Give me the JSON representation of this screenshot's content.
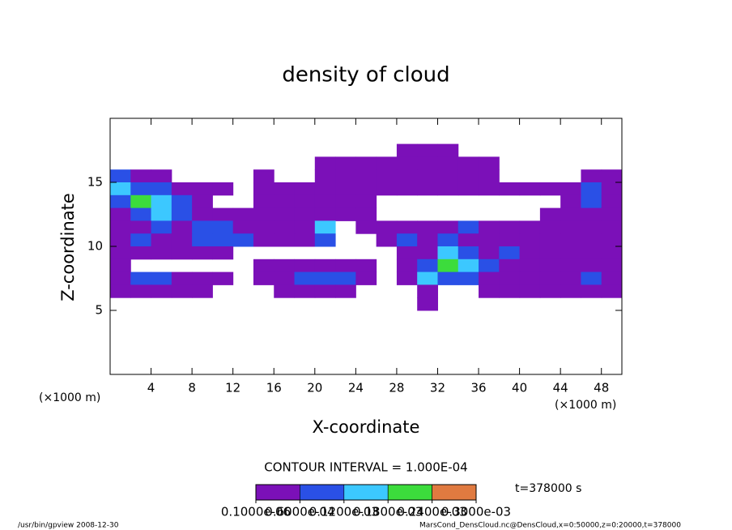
{
  "chart_data": {
    "type": "heatmap",
    "title": "density of cloud",
    "xlabel": "X-coordinate",
    "ylabel": "Z-coordinate",
    "x_units": "(×1000 m)",
    "y_units": "(×1000 m)",
    "xlim": [
      0,
      50
    ],
    "ylim": [
      0,
      20
    ],
    "xticks": [
      4,
      8,
      12,
      16,
      20,
      24,
      28,
      32,
      36,
      40,
      44,
      48
    ],
    "yticks": [
      5,
      10,
      15
    ],
    "x": [
      1,
      3,
      5,
      7,
      9,
      11,
      13,
      15,
      17,
      19,
      21,
      23,
      25,
      27,
      29,
      31,
      33,
      35,
      37,
      39,
      41,
      43,
      45,
      47,
      49
    ],
    "z": [
      17.5,
      16.5,
      15.5,
      14.5,
      13.5,
      12.5,
      11.5,
      10.5,
      9.5,
      8.5,
      7.5,
      6.5,
      5.5
    ],
    "values": [
      [
        0,
        0,
        0,
        0,
        0,
        0,
        0,
        0,
        0,
        0,
        0,
        0,
        0,
        0,
        3e-05,
        3e-05,
        3e-05,
        0,
        0,
        0,
        0,
        0,
        0,
        0,
        0
      ],
      [
        0,
        0,
        0,
        0,
        0,
        0,
        0,
        0,
        0,
        0,
        3e-05,
        3e-05,
        3e-05,
        3e-05,
        3e-05,
        3e-05,
        3e-05,
        3e-05,
        3e-05,
        0,
        0,
        0,
        0,
        0,
        0
      ],
      [
        8e-05,
        3e-05,
        3e-05,
        0,
        0,
        0,
        0,
        3e-05,
        0,
        0,
        3e-05,
        3e-05,
        3e-05,
        3e-05,
        3e-05,
        3e-05,
        3e-05,
        3e-05,
        3e-05,
        0,
        0,
        0,
        0,
        3e-05,
        3e-05
      ],
      [
        0.00014,
        8e-05,
        8e-05,
        3e-05,
        3e-05,
        3e-05,
        0,
        3e-05,
        3e-05,
        3e-05,
        3e-05,
        3e-05,
        3e-05,
        3e-05,
        3e-05,
        3e-05,
        3e-05,
        3e-05,
        3e-05,
        3e-05,
        3e-05,
        3e-05,
        3e-05,
        8e-05,
        3e-05
      ],
      [
        8e-05,
        0.00019,
        0.00014,
        8e-05,
        3e-05,
        0,
        0,
        3e-05,
        3e-05,
        3e-05,
        3e-05,
        3e-05,
        3e-05,
        0,
        0,
        0,
        0,
        0,
        0,
        0,
        0,
        0,
        3e-05,
        8e-05,
        3e-05
      ],
      [
        3e-05,
        8e-05,
        0.00014,
        8e-05,
        3e-05,
        3e-05,
        3e-05,
        3e-05,
        3e-05,
        3e-05,
        3e-05,
        3e-05,
        3e-05,
        0,
        0,
        0,
        0,
        0,
        0,
        0,
        0,
        3e-05,
        3e-05,
        3e-05,
        3e-05
      ],
      [
        3e-05,
        3e-05,
        8e-05,
        3e-05,
        8e-05,
        8e-05,
        3e-05,
        3e-05,
        3e-05,
        3e-05,
        0.00014,
        0,
        3e-05,
        3e-05,
        3e-05,
        3e-05,
        3e-05,
        8e-05,
        3e-05,
        3e-05,
        3e-05,
        3e-05,
        3e-05,
        3e-05,
        3e-05
      ],
      [
        3e-05,
        8e-05,
        3e-05,
        3e-05,
        8e-05,
        8e-05,
        8e-05,
        3e-05,
        3e-05,
        3e-05,
        8e-05,
        0,
        0,
        3e-05,
        8e-05,
        3e-05,
        8e-05,
        3e-05,
        3e-05,
        3e-05,
        3e-05,
        3e-05,
        3e-05,
        3e-05,
        3e-05
      ],
      [
        3e-05,
        3e-05,
        3e-05,
        3e-05,
        3e-05,
        3e-05,
        0,
        0,
        0,
        0,
        0,
        0,
        0,
        0,
        3e-05,
        3e-05,
        0.00014,
        8e-05,
        3e-05,
        8e-05,
        3e-05,
        3e-05,
        3e-05,
        3e-05,
        3e-05
      ],
      [
        3e-05,
        0,
        0,
        0,
        0,
        0,
        0,
        3e-05,
        3e-05,
        3e-05,
        3e-05,
        3e-05,
        3e-05,
        0,
        3e-05,
        8e-05,
        0.00019,
        0.00014,
        8e-05,
        3e-05,
        3e-05,
        3e-05,
        3e-05,
        3e-05,
        3e-05
      ],
      [
        3e-05,
        8e-05,
        8e-05,
        3e-05,
        3e-05,
        3e-05,
        0,
        3e-05,
        3e-05,
        8e-05,
        8e-05,
        8e-05,
        3e-05,
        0,
        3e-05,
        0.00014,
        8e-05,
        8e-05,
        3e-05,
        3e-05,
        3e-05,
        3e-05,
        3e-05,
        8e-05,
        3e-05
      ],
      [
        3e-05,
        3e-05,
        3e-05,
        3e-05,
        3e-05,
        0,
        0,
        0,
        3e-05,
        3e-05,
        3e-05,
        3e-05,
        0,
        0,
        0,
        3e-05,
        0,
        0,
        3e-05,
        3e-05,
        3e-05,
        3e-05,
        3e-05,
        3e-05,
        3e-05
      ],
      [
        0,
        0,
        0,
        0,
        0,
        0,
        0,
        0,
        0,
        0,
        0,
        0,
        0,
        0,
        0,
        3e-05,
        0,
        0,
        0,
        0,
        0,
        0,
        0,
        0,
        0
      ]
    ],
    "colorbar": {
      "levels": [
        {
          "value": 1e-07,
          "label": "0.1000e-06"
        },
        {
          "value": 6e-05,
          "label": "0.6000e-04"
        },
        {
          "value": 0.00012,
          "label": "0.1200e-03"
        },
        {
          "value": 0.00018,
          "label": "0.1800e-03"
        },
        {
          "value": 0.00024,
          "label": "0.2400e-03"
        },
        {
          "value": 0.0003,
          "label": "0.3000e-03"
        }
      ],
      "colors": [
        "#7b10b8",
        "#2a50e6",
        "#3cc8ff",
        "#3cdc3c",
        "#e07a40"
      ]
    },
    "contour_interval": "CONTOUR INTERVAL = 1.000E-04",
    "time": "t=378000 s",
    "footer_left": "/usr/bin/gpview   2008-12-30",
    "footer_right": "MarsCond_DensCloud.nc@DensCloud,x=0:50000,z=0:20000,t=378000"
  }
}
